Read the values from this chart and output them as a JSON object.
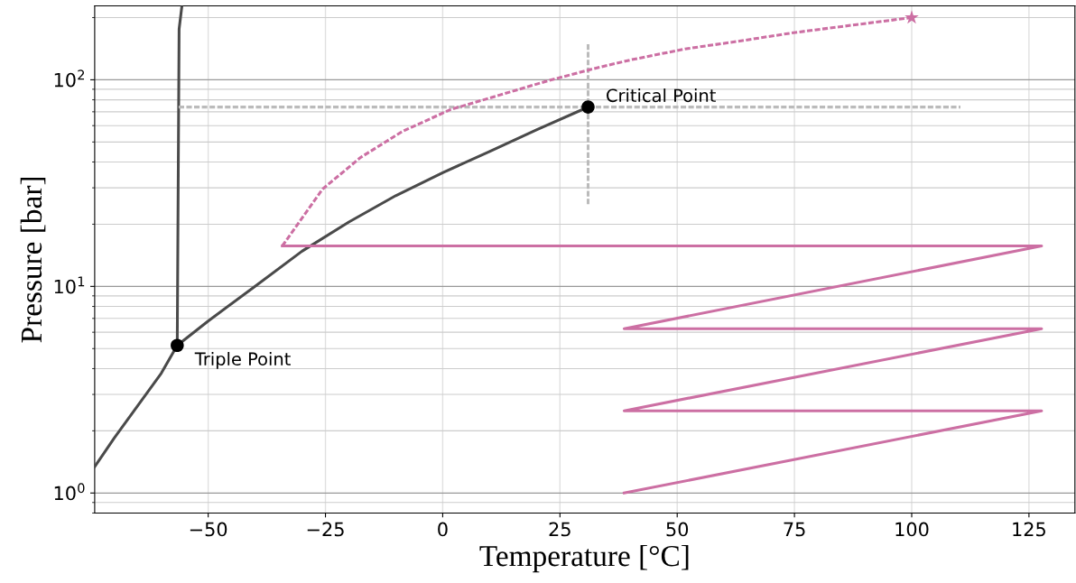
{
  "chart_data": {
    "type": "line",
    "xlabel": "Temperature [°C]",
    "ylabel": "Pressure [bar]",
    "log": "y",
    "grid": true,
    "legend": false,
    "xlim": [
      -74.2,
      134.8
    ],
    "ylim": [
      0.8,
      228
    ],
    "xticks": [
      {
        "value": -50,
        "label": "−50"
      },
      {
        "value": -25,
        "label": "−25"
      },
      0,
      25,
      50,
      75,
      100,
      125
    ],
    "yticks": [
      {
        "value": 1,
        "label": "10$^{0}$"
      },
      {
        "value": 10,
        "label": "10$^{1}$"
      },
      {
        "value": 100,
        "label": "10$^{2}$"
      }
    ],
    "series": [
      {
        "type": "line",
        "color": "#4a4a4a",
        "line_style": "solid",
        "marker": "none",
        "x": [
          -56.6,
          -56.2,
          -55.6
        ],
        "values": [
          5.18,
          176,
          228
        ]
      },
      {
        "type": "line",
        "color": "#4a4a4a",
        "line_style": "solid",
        "marker": "none",
        "x": [
          -74.2,
          -70,
          -65,
          -60,
          -56.6,
          -50,
          -40,
          -30,
          -20,
          -10,
          0,
          10,
          20,
          31
        ],
        "values": [
          1.34,
          1.85,
          2.65,
          3.8,
          5.18,
          6.8,
          10.0,
          14.8,
          20.5,
          27.5,
          35.5,
          45.0,
          57.3,
          73.8
        ]
      },
      {
        "type": "line",
        "color": "#bbbbbb",
        "line_style": "dashed",
        "marker": "none",
        "x": [
          -56.3,
          110.4
        ],
        "values": [
          73.8,
          73.8
        ]
      },
      {
        "type": "line",
        "color": "#bbbbbb",
        "line_style": "dashed",
        "marker": "none",
        "x": [
          31,
          31
        ],
        "values": [
          25,
          151
        ]
      },
      {
        "type": "line",
        "color": "#cc6fa3",
        "line_style": "dashed",
        "marker": "none",
        "x": [
          -34.2,
          -25.6,
          -17.5,
          -8.5,
          1.7,
          12.1,
          22.5,
          32.1,
          40.2,
          51.7,
          63.3,
          74.8,
          88.3,
          100
        ],
        "values": [
          15.7,
          29.6,
          42.1,
          56.4,
          71.8,
          84.3,
          99,
          113,
          125,
          141,
          154,
          169,
          185,
          200
        ]
      },
      {
        "type": "scatter",
        "color": "#cc6fa3",
        "marker": "star",
        "x": [
          100
        ],
        "values": [
          200
        ]
      },
      {
        "type": "line",
        "color": "#cc6fa3",
        "line_style": "solid",
        "marker": "none",
        "x": [
          -34.2,
          127.7,
          38.7,
          127.7,
          38.7,
          127.7,
          38.7
        ],
        "values": [
          15.7,
          15.7,
          6.24,
          6.24,
          2.5,
          2.5,
          1.0
        ]
      },
      {
        "type": "scatter",
        "color": "#000000",
        "marker": "circle",
        "x": [
          -56.6,
          31
        ],
        "values": [
          5.18,
          73.8
        ]
      }
    ],
    "annotations": [
      {
        "text": "Critical Point",
        "x": 31,
        "y": 73.8
      },
      {
        "text": "Triple Point",
        "x": -56.6,
        "y": 5.18
      }
    ]
  }
}
